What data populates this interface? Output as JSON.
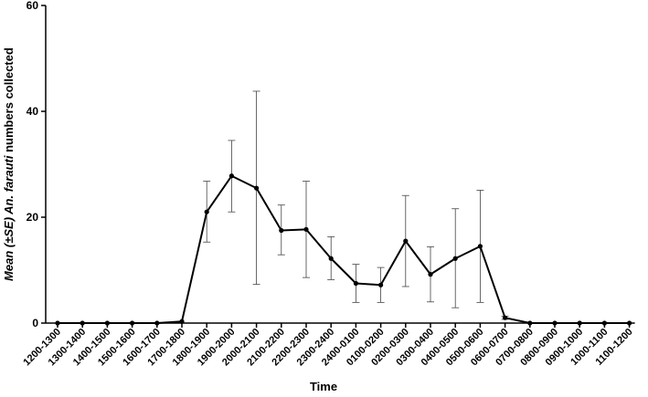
{
  "chart_data": {
    "type": "line",
    "title": "",
    "xlabel": "Time",
    "ylabel_prefix": "Mean (±SE) ",
    "ylabel_species": "An. farauti",
    "ylabel_suffix": " numbers collected",
    "ylim": [
      0,
      60
    ],
    "yticks": [
      0,
      20,
      40,
      60
    ],
    "grid": false,
    "categories": [
      "1200-1300",
      "1300-1400",
      "1400-1500",
      "1500-1600",
      "1600-1700",
      "1700-1800",
      "1800-1900",
      "1900-2000",
      "2000-2100",
      "2100-2200",
      "2200-2300",
      "2300-2400",
      "2400-0100",
      "0100-0200",
      "0200-0300",
      "0300-0400",
      "0400-0500",
      "0500-0600",
      "0600-0700",
      "0700-0800",
      "0800-0900",
      "0900-1000",
      "1000-1100",
      "1100-1200"
    ],
    "series": [
      {
        "values": [
          0,
          0,
          0,
          0,
          0,
          0.3,
          21,
          27.8,
          25.5,
          17.5,
          17.7,
          12.2,
          7.5,
          7.2,
          15.5,
          9.2,
          12.2,
          14.5,
          1,
          0,
          0,
          0,
          0,
          0
        ],
        "error_upper": [
          0,
          0,
          0,
          0,
          0,
          0.3,
          26.8,
          34.5,
          43.8,
          22.3,
          26.8,
          16.3,
          11.1,
          10.5,
          24.1,
          14.4,
          21.6,
          25.1,
          1.3,
          0,
          0,
          0,
          0,
          0
        ],
        "error_lower": [
          0,
          0,
          0,
          0,
          0,
          0.3,
          15.3,
          21.0,
          7.3,
          12.9,
          8.6,
          8.2,
          3.9,
          3.9,
          6.9,
          4.0,
          2.9,
          3.9,
          0.7,
          0,
          0,
          0,
          0,
          0
        ],
        "color": "#000000"
      }
    ]
  }
}
